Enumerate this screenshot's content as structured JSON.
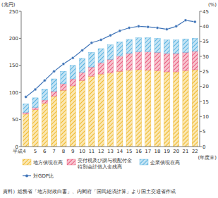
{
  "chart_data": {
    "type": "bar",
    "stacked": true,
    "grid": false,
    "y_label": "(兆円)",
    "y2_label": "(%)",
    "x_label": "(年度末)",
    "source": "資料）総務省「地方財政白書」、内閣府「国民経済計算」より国土交通省作成",
    "categories": [
      "平成4",
      "5",
      "6",
      "7",
      "8",
      "9",
      "10",
      "11",
      "12",
      "13",
      "14",
      "15",
      "16",
      "17",
      "18",
      "19",
      "20",
      "21",
      "22"
    ],
    "ylim": [
      0,
      250
    ],
    "yticks": [
      0,
      50,
      100,
      150,
      200,
      250
    ],
    "y2lim": [
      0,
      45
    ],
    "y2ticks": [
      0,
      5,
      10,
      15,
      20,
      25,
      30,
      35,
      40,
      45
    ],
    "series": [
      {
        "name": "地方債現在高",
        "color": "#f0b92a",
        "type": "bar",
        "values": [
          60,
          68,
          80,
          93,
          104,
          112,
          122,
          130,
          134,
          136,
          139,
          141,
          142,
          141,
          140,
          138,
          138,
          140,
          142
        ]
      },
      {
        "name": "交付税及び譲与税配付金特別会計借入金残高",
        "color": "#e8587a",
        "type": "bar",
        "values": [
          3,
          4,
          6,
          9,
          12,
          13,
          15,
          17,
          21,
          25,
          28,
          31,
          33,
          34,
          34,
          34,
          34,
          34,
          34
        ]
      },
      {
        "name": "企業債現在高",
        "color": "#58b2e0",
        "type": "bar",
        "values": [
          16,
          18,
          20,
          23,
          23,
          25,
          26,
          27,
          26,
          27,
          26,
          26,
          26,
          26,
          26,
          25,
          25,
          25,
          24
        ]
      },
      {
        "name": "対GDP比",
        "color": "#3f74b8",
        "type": "line",
        "axis": "y2",
        "marker": "circle",
        "values": [
          16.5,
          19,
          22,
          25,
          27.5,
          29.5,
          32,
          34.5,
          35.5,
          37,
          38.5,
          39.5,
          40,
          39.8,
          39.5,
          39,
          40,
          42,
          41.5
        ]
      }
    ]
  }
}
